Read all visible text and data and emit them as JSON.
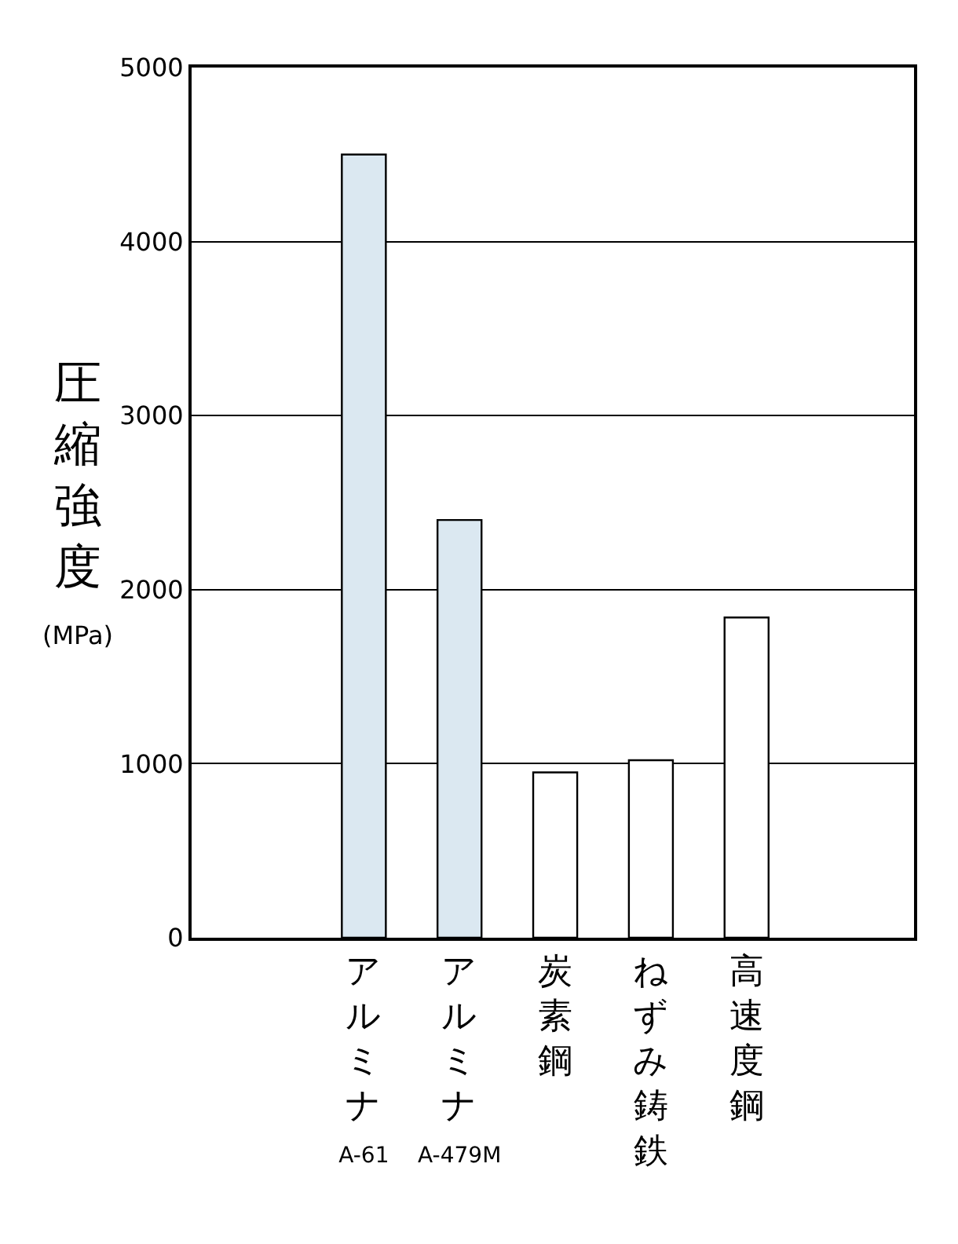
{
  "chart_data": {
    "type": "bar",
    "categories": [
      "アルミナ A-61",
      "アルミナ A-479M",
      "炭素鋼",
      "ねずみ鋳鉄",
      "高速度鋼"
    ],
    "values": [
      4500,
      2400,
      950,
      1020,
      1840
    ],
    "colors": [
      "#dbe8f1",
      "#dbe8f1",
      "#ffffff",
      "#ffffff",
      "#ffffff"
    ],
    "ylabel": "圧縮強度 (MPa)",
    "ylim": [
      0,
      5000
    ],
    "yticks": [
      0,
      1000,
      2000,
      3000,
      4000,
      5000
    ],
    "grid": "y"
  }
}
